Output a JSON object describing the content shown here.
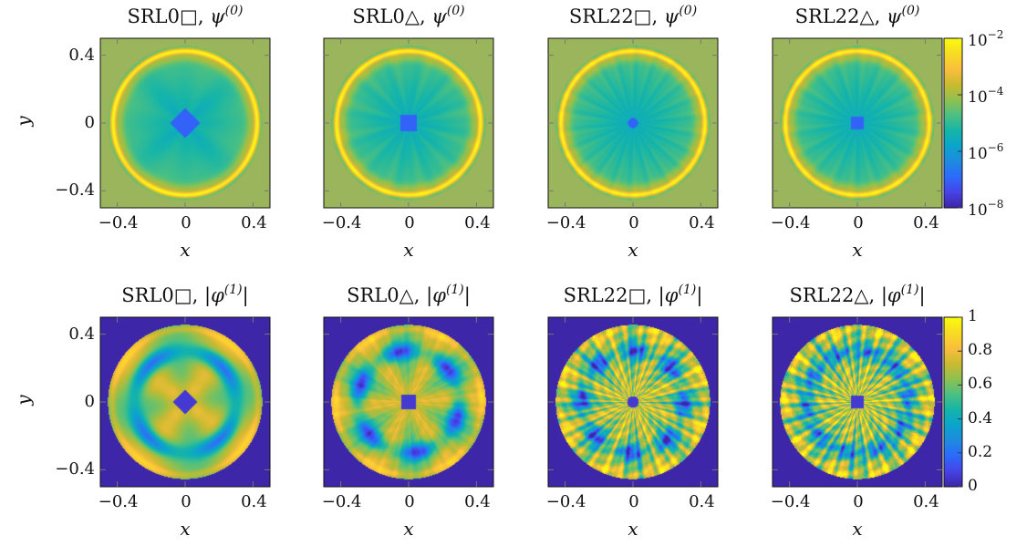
{
  "chart_data": [
    {
      "type": "heatmap",
      "title": {
        "prefix": "SRL0□, ",
        "symbol": "ψ",
        "sup": "(0)",
        "suffix": ""
      },
      "xlabel": "x",
      "ylabel": "y",
      "xlim": [
        -0.5,
        0.5
      ],
      "ylim": [
        -0.5,
        0.5
      ],
      "xticks": [
        "−0.4",
        "0",
        "0.4"
      ],
      "yticks": [
        "0.4",
        "0",
        "−0.4"
      ],
      "scale": "log",
      "pattern": "psi",
      "rays": 4,
      "hole": "diamond",
      "holeSize": 0.09
    },
    {
      "type": "heatmap",
      "title": {
        "prefix": "SRL0△, ",
        "symbol": "ψ",
        "sup": "(0)",
        "suffix": ""
      },
      "xlabel": "x",
      "ylabel": "",
      "xlim": [
        -0.5,
        0.5
      ],
      "ylim": [
        -0.5,
        0.5
      ],
      "xticks": [
        "−0.4",
        "0",
        "0.4"
      ],
      "yticks": [],
      "scale": "log",
      "pattern": "psi",
      "rays": 12,
      "hole": "square",
      "holeSize": 0.05
    },
    {
      "type": "heatmap",
      "title": {
        "prefix": "SRL22□, ",
        "symbol": "ψ",
        "sup": "(0)",
        "suffix": ""
      },
      "xlabel": "x",
      "ylabel": "",
      "xlim": [
        -0.5,
        0.5
      ],
      "ylim": [
        -0.5,
        0.5
      ],
      "xticks": [
        "−0.4",
        "0",
        "0.4"
      ],
      "yticks": [],
      "scale": "log",
      "pattern": "psi",
      "rays": 22,
      "hole": "circle",
      "holeSize": 0.03
    },
    {
      "type": "heatmap",
      "title": {
        "prefix": "SRL22△, ",
        "symbol": "ψ",
        "sup": "(0)",
        "suffix": ""
      },
      "xlabel": "x",
      "ylabel": "",
      "xlim": [
        -0.5,
        0.5
      ],
      "ylim": [
        -0.5,
        0.5
      ],
      "xticks": [
        "−0.4",
        "0",
        "0.4"
      ],
      "yticks": [],
      "scale": "log",
      "pattern": "psi",
      "rays": 18,
      "hole": "square",
      "holeSize": 0.035,
      "colorbar": {
        "ticks": [
          {
            "base": "10",
            "exp": "−2",
            "frac": 1.0
          },
          {
            "base": "10",
            "exp": "−4",
            "frac": 0.6667
          },
          {
            "base": "10",
            "exp": "−6",
            "frac": 0.3333
          },
          {
            "base": "10",
            "exp": "−8",
            "frac": 0.0
          }
        ]
      }
    },
    {
      "type": "heatmap",
      "title": {
        "prefix": "SRL0□, |",
        "symbol": "φ",
        "sup": "(1)",
        "suffix": "|"
      },
      "xlabel": "x",
      "ylabel": "y",
      "xlim": [
        -0.5,
        0.5
      ],
      "ylim": [
        -0.5,
        0.5
      ],
      "xticks": [
        "−0.4",
        "0",
        "0.4"
      ],
      "yticks": [
        "0.4",
        "0",
        "−0.4"
      ],
      "scale": "linear",
      "pattern": "phi",
      "rays": 4,
      "hole": "diamond",
      "holeSize": 0.07,
      "noise": 0.0
    },
    {
      "type": "heatmap",
      "title": {
        "prefix": "SRL0△, |",
        "symbol": "φ",
        "sup": "(1)",
        "suffix": "|"
      },
      "xlabel": "x",
      "ylabel": "",
      "xlim": [
        -0.5,
        0.5
      ],
      "ylim": [
        -0.5,
        0.5
      ],
      "xticks": [
        "−0.4",
        "0",
        "0.4"
      ],
      "yticks": [],
      "scale": "linear",
      "pattern": "phi",
      "rays": 6,
      "hole": "square",
      "holeSize": 0.045,
      "noise": 0.05
    },
    {
      "type": "heatmap",
      "title": {
        "prefix": "SRL22□, |",
        "symbol": "φ",
        "sup": "(1)",
        "suffix": "|"
      },
      "xlabel": "x",
      "ylabel": "",
      "xlim": [
        -0.5,
        0.5
      ],
      "ylim": [
        -0.5,
        0.5
      ],
      "xticks": [
        "−0.4",
        "0",
        "0.4"
      ],
      "yticks": [],
      "scale": "linear",
      "pattern": "phi",
      "rays": 8,
      "hole": "circle",
      "holeSize": 0.035,
      "noise": 0.25
    },
    {
      "type": "heatmap",
      "title": {
        "prefix": "SRL22△, |",
        "symbol": "φ",
        "sup": "(1)",
        "suffix": "|"
      },
      "xlabel": "x",
      "ylabel": "",
      "xlim": [
        -0.5,
        0.5
      ],
      "ylim": [
        -0.5,
        0.5
      ],
      "xticks": [
        "−0.4",
        "0",
        "0.4"
      ],
      "yticks": [],
      "scale": "linear",
      "pattern": "phi",
      "rays": 10,
      "hole": "square",
      "holeSize": 0.035,
      "noise": 0.3,
      "colorbar": {
        "ticks": [
          {
            "base": "1",
            "exp": "",
            "frac": 1.0
          },
          {
            "base": "0.8",
            "exp": "",
            "frac": 0.8
          },
          {
            "base": "0.6",
            "exp": "",
            "frac": 0.6
          },
          {
            "base": "0.4",
            "exp": "",
            "frac": 0.4
          },
          {
            "base": "0.2",
            "exp": "",
            "frac": 0.2
          },
          {
            "base": "0",
            "exp": "",
            "frac": 0.0
          }
        ]
      }
    }
  ],
  "colormap": [
    "#3e26a8",
    "#4744e7",
    "#2c6bfc",
    "#1f8bdf",
    "#0aa4cc",
    "#16b5a9",
    "#4cc082",
    "#8fc050",
    "#cbba30",
    "#fbbe3e",
    "#f8dc24",
    "#f9fb0e"
  ]
}
